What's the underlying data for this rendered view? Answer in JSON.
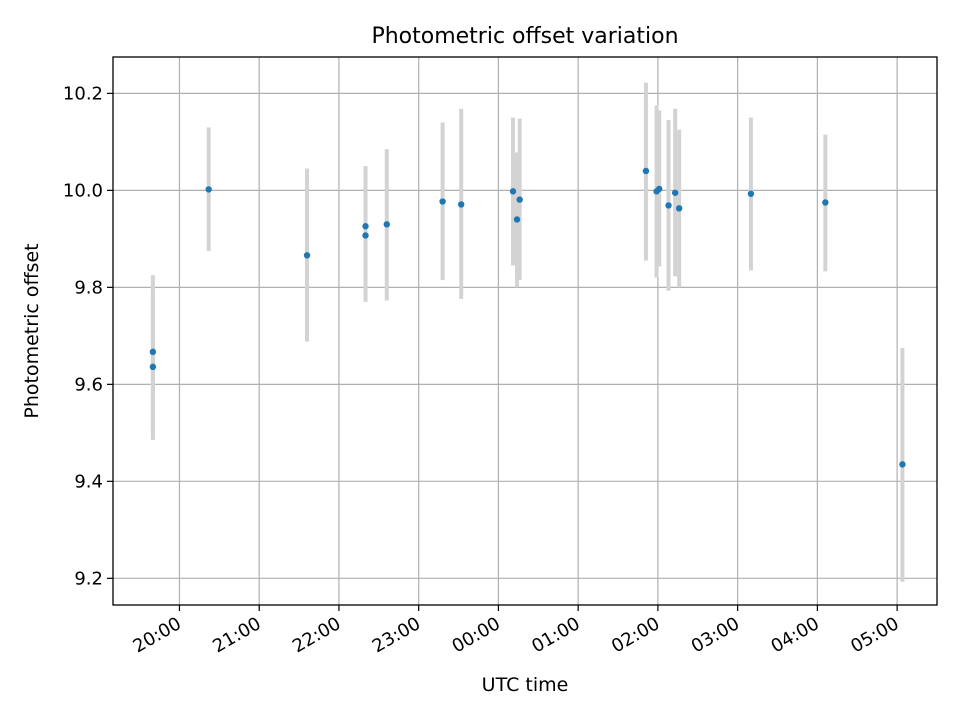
{
  "chart_data": {
    "type": "scatter",
    "title": "Photometric offset variation",
    "xlabel": "UTC time",
    "ylabel": "Photometric offset",
    "x_axis": "time",
    "xlim": [
      "19:10",
      "05:30"
    ],
    "ylim": [
      9.145,
      10.275
    ],
    "x_ticks": [
      "20:00",
      "21:00",
      "22:00",
      "23:00",
      "00:00",
      "01:00",
      "02:00",
      "03:00",
      "04:00",
      "05:00"
    ],
    "y_ticks": [
      "9.2",
      "9.4",
      "9.6",
      "9.8",
      "10.0",
      "10.2"
    ],
    "y_tick_values": [
      9.2,
      9.4,
      9.6,
      9.8,
      10.0,
      10.2
    ],
    "grid": true,
    "marker_color": "#1f77b4",
    "errorbar_color": "#d3d3d3",
    "points": [
      {
        "x": "19:40",
        "y": 9.667,
        "ylow": 9.505,
        "yhigh": 9.825
      },
      {
        "x": "19:40",
        "y": 9.636,
        "ylow": 9.485,
        "yhigh": 9.79
      },
      {
        "x": "20:22",
        "y": 10.002,
        "ylow": 9.875,
        "yhigh": 10.13
      },
      {
        "x": "21:36",
        "y": 9.866,
        "ylow": 9.688,
        "yhigh": 10.045
      },
      {
        "x": "22:20",
        "y": 9.926,
        "ylow": 9.79,
        "yhigh": 10.05
      },
      {
        "x": "22:20",
        "y": 9.907,
        "ylow": 9.77,
        "yhigh": 10.045
      },
      {
        "x": "22:36",
        "y": 9.93,
        "ylow": 9.773,
        "yhigh": 10.085
      },
      {
        "x": "23:18",
        "y": 9.977,
        "ylow": 9.815,
        "yhigh": 10.14
      },
      {
        "x": "23:32",
        "y": 9.971,
        "ylow": 9.776,
        "yhigh": 10.168
      },
      {
        "x": "00:11",
        "y": 9.998,
        "ylow": 9.845,
        "yhigh": 10.15
      },
      {
        "x": "00:14",
        "y": 9.94,
        "ylow": 9.8,
        "yhigh": 10.078
      },
      {
        "x": "00:16",
        "y": 9.981,
        "ylow": 9.815,
        "yhigh": 10.148
      },
      {
        "x": "01:51",
        "y": 10.04,
        "ylow": 9.855,
        "yhigh": 10.222
      },
      {
        "x": "01:59",
        "y": 9.998,
        "ylow": 9.82,
        "yhigh": 10.175
      },
      {
        "x": "02:01",
        "y": 10.003,
        "ylow": 9.843,
        "yhigh": 10.165
      },
      {
        "x": "02:08",
        "y": 9.969,
        "ylow": 9.793,
        "yhigh": 10.145
      },
      {
        "x": "02:13",
        "y": 9.995,
        "ylow": 9.823,
        "yhigh": 10.168
      },
      {
        "x": "02:16",
        "y": 9.963,
        "ylow": 9.8,
        "yhigh": 10.125
      },
      {
        "x": "03:10",
        "y": 9.993,
        "ylow": 9.835,
        "yhigh": 10.15
      },
      {
        "x": "04:06",
        "y": 9.975,
        "ylow": 9.833,
        "yhigh": 10.115
      },
      {
        "x": "05:04",
        "y": 9.435,
        "ylow": 9.193,
        "yhigh": 9.675
      }
    ]
  }
}
